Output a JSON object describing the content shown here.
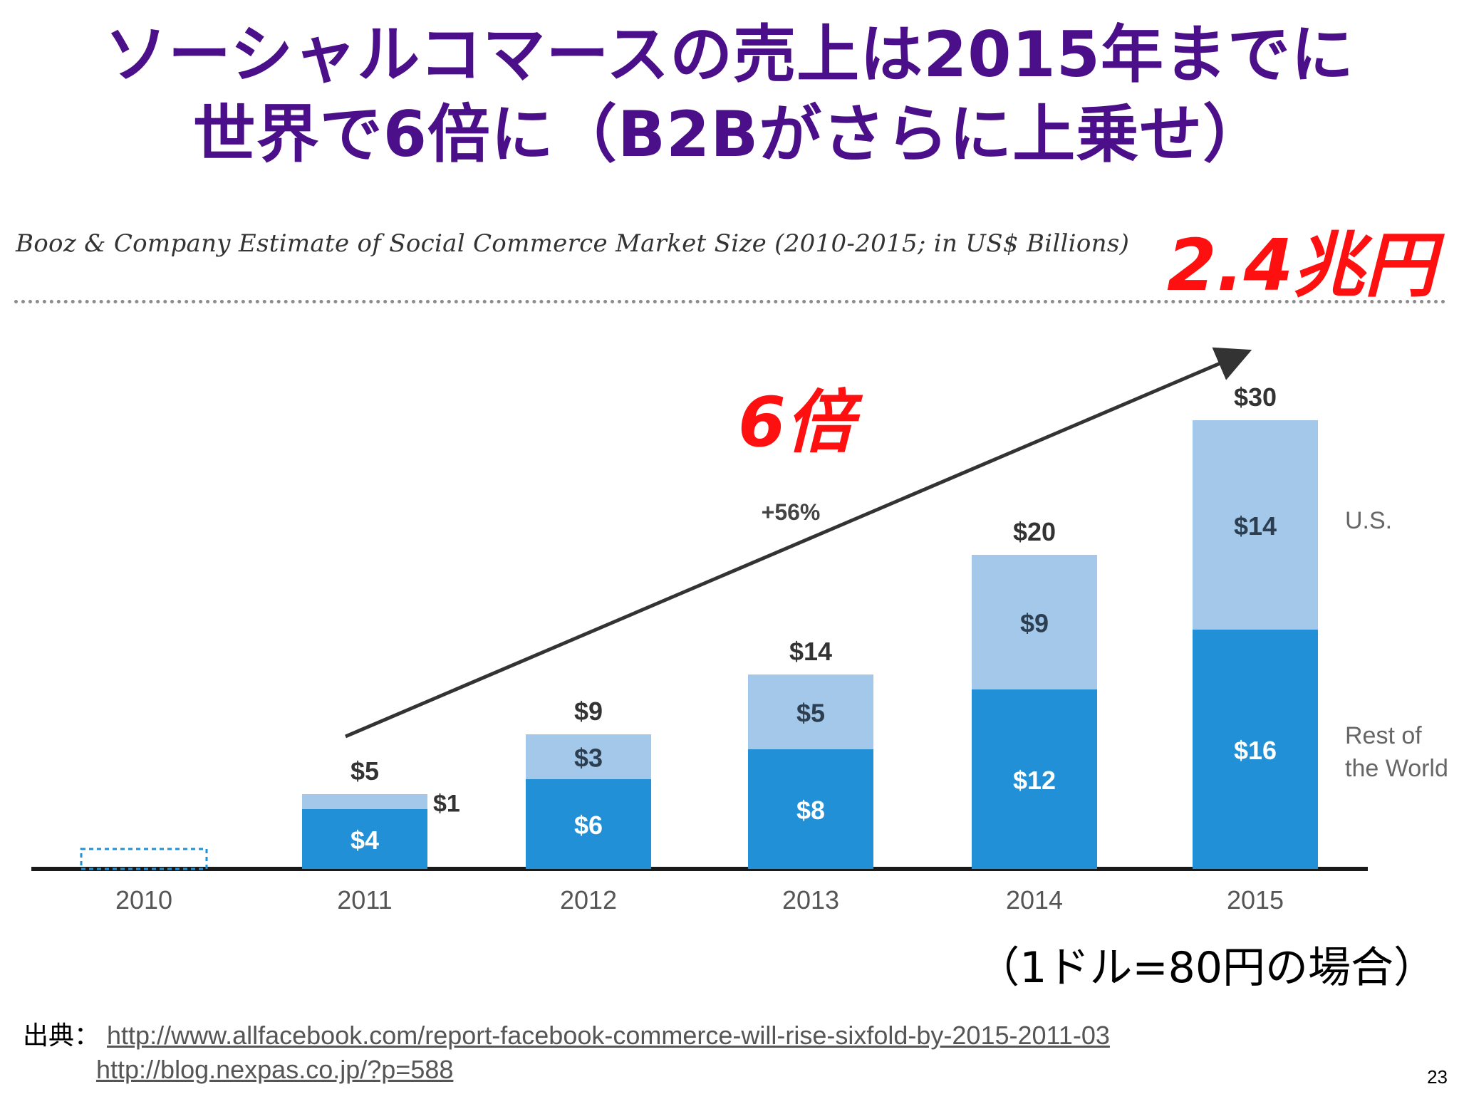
{
  "slide": {
    "title_line1": "ソーシャルコマースの売上は2015年までに",
    "title_line2": "世界で6倍に（B2Bがさらに上乗せ）",
    "callout_total": "2.4兆円",
    "callout_factor": "6倍",
    "rate_note": "（1ドル=80円の場合）",
    "source_label": "出典：",
    "source_url1": "http://www.allfacebook.com/report-facebook-commerce-will-rise-sixfold-by-2015-2011-03",
    "source_url2": "http://blog.nexpas.co.jp/?p=588",
    "page_number": "23"
  },
  "chart_data": {
    "type": "bar",
    "stacked": true,
    "title": "Booz & Company Estimate of Social Commerce Market Size (2010-2015; in US$ Billions)",
    "categories": [
      "2010",
      "2011",
      "2012",
      "2013",
      "2014",
      "2015"
    ],
    "series": [
      {
        "name": "Rest of the World",
        "values": [
          0,
          4,
          6,
          8,
          12,
          16
        ],
        "labels": [
          "",
          "$4",
          "$6",
          "$8",
          "$12",
          "$16"
        ]
      },
      {
        "name": "U.S.",
        "values": [
          0,
          1,
          3,
          5,
          9,
          14
        ],
        "labels": [
          "",
          "$1",
          "$3",
          "$5",
          "$9",
          "$14"
        ]
      }
    ],
    "totals": [
      0,
      5,
      9,
      14,
      20,
      30
    ],
    "total_labels": [
      "",
      "$5",
      "$9",
      "$14",
      "$20",
      "$30"
    ],
    "legend": [
      "U.S.",
      "Rest of the World"
    ],
    "annotation": "+56%",
    "colors": {
      "rest_of_world": "#2190d6",
      "us": "#a3c8ea",
      "axis": "#1a1a1a",
      "arrow": "#333333"
    },
    "ylim": [
      0,
      30
    ],
    "legend_position": "right"
  }
}
